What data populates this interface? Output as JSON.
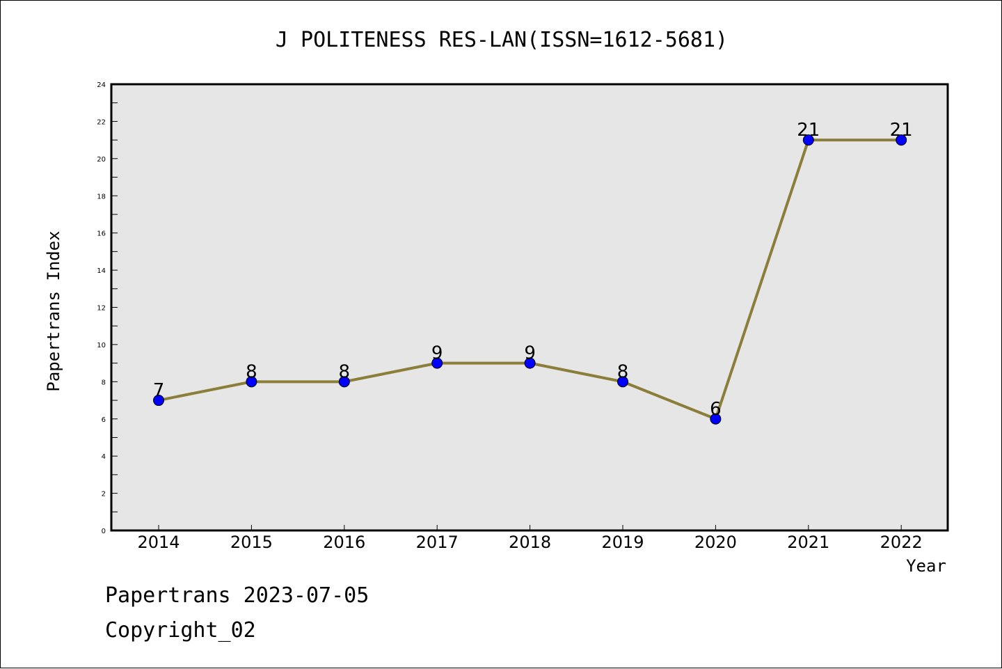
{
  "chart_data": {
    "type": "line",
    "title": "J POLITENESS RES-LAN(ISSN=1612-5681)",
    "xlabel": "Year",
    "ylabel": "Papertrans Index",
    "categories": [
      "2014",
      "2015",
      "2016",
      "2017",
      "2018",
      "2019",
      "2020",
      "2021",
      "2022"
    ],
    "series": [
      {
        "values": [
          7,
          8,
          8,
          9,
          9,
          8,
          6,
          21,
          21
        ]
      }
    ],
    "ylim": [
      0,
      24
    ],
    "yticks": [
      0,
      2,
      4,
      6,
      8,
      10,
      12,
      14,
      16,
      18,
      20,
      22,
      24
    ],
    "grid": false,
    "colors": {
      "line": "#8b7d3a",
      "marker": "#0000ff",
      "plot_background": "#e6e6e6"
    }
  },
  "footer": {
    "line1": "Papertrans 2023-07-05",
    "line2": "Copyright_02"
  }
}
